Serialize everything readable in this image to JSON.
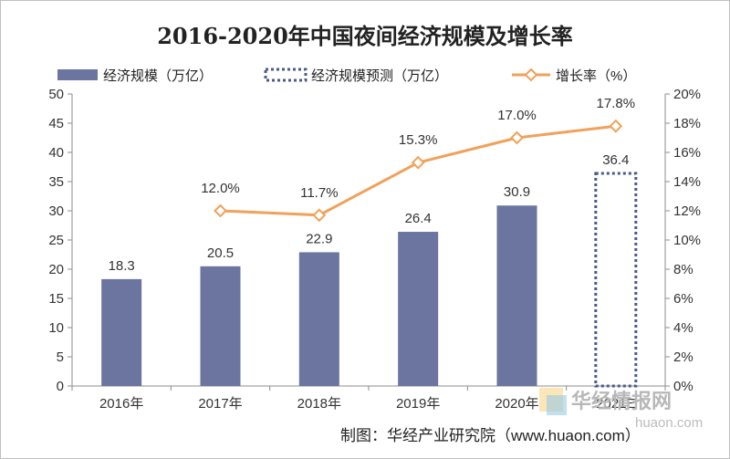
{
  "chart_data": {
    "type": "bar+line",
    "title": "2016-2020年中国夜间经济规模及增长率",
    "categories": [
      "2016年",
      "2017年",
      "2018年",
      "2019年",
      "2020年",
      "2021E"
    ],
    "series": [
      {
        "name": "经济规模（万亿）",
        "type": "bar",
        "axis": "left",
        "color": "#6b759f",
        "values": [
          18.3,
          20.5,
          22.9,
          26.4,
          30.9,
          null
        ],
        "labels": [
          "18.3",
          "20.5",
          "22.9",
          "26.4",
          "30.9",
          ""
        ]
      },
      {
        "name": "经济规模预测（万亿）",
        "type": "bar",
        "style": "dotted-outline",
        "axis": "left",
        "color": "#4a5a8c",
        "values": [
          null,
          null,
          null,
          null,
          null,
          36.4
        ],
        "labels": [
          "",
          "",
          "",
          "",
          "",
          "36.4"
        ]
      },
      {
        "name": "增长率（%）",
        "type": "line",
        "axis": "right",
        "color": "#f0a15a",
        "values": [
          null,
          12.0,
          11.7,
          15.3,
          17.0,
          17.8
        ],
        "labels": [
          "",
          "12.0%",
          "11.7%",
          "15.3%",
          "17.0%",
          "17.8%"
        ]
      }
    ],
    "y_left": {
      "min": 0,
      "max": 50,
      "step": 5,
      "ticks": [
        "0",
        "5",
        "10",
        "15",
        "20",
        "25",
        "30",
        "35",
        "40",
        "45",
        "50"
      ]
    },
    "y_right": {
      "min": 0,
      "max": 20,
      "step": 2,
      "ticks": [
        "0%",
        "2%",
        "4%",
        "6%",
        "8%",
        "10%",
        "12%",
        "14%",
        "16%",
        "18%",
        "20%"
      ]
    },
    "legend": "top",
    "grid": false
  },
  "source_label": "制图：华经产业研究院（www.huaon.com）",
  "watermark": {
    "cn": "华经情报网",
    "en": "huaon.com"
  }
}
